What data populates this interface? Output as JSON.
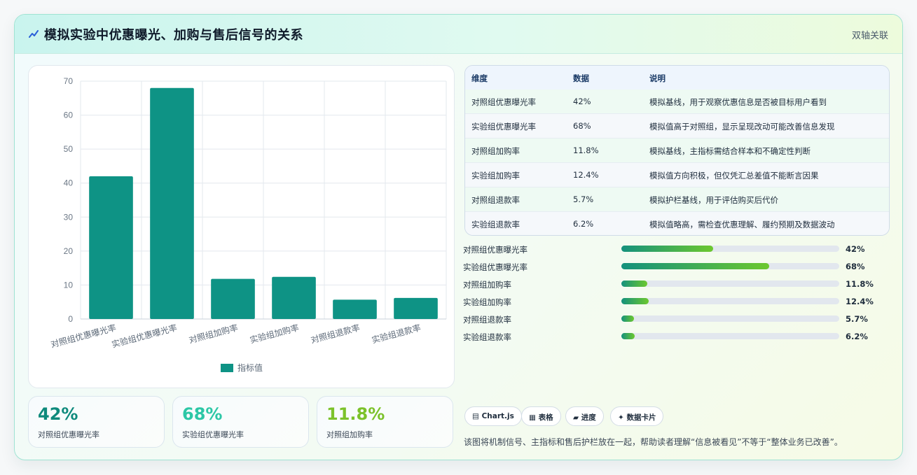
{
  "header": {
    "title": "模拟实验中优惠曝光、加购与售后信号的关系",
    "tag": "双轴关联"
  },
  "chart_data": {
    "type": "bar",
    "categories": [
      "对照组优惠曝光率",
      "实验组优惠曝光率",
      "对照组加购率",
      "实验组加购率",
      "对照组退款率",
      "实验组退款率"
    ],
    "series": [
      {
        "name": "指标值",
        "values": [
          42,
          68,
          11.8,
          12.4,
          5.7,
          6.2
        ],
        "color": "#0e9385"
      }
    ],
    "ylim": [
      0,
      70
    ],
    "yticks": [
      "0",
      "10",
      "20",
      "30",
      "40",
      "50",
      "60",
      "70"
    ],
    "grid": true,
    "legend": "bottom"
  },
  "stats": [
    {
      "value": "42%",
      "label": "对照组优惠曝光率",
      "color": "#0e8a7c"
    },
    {
      "value": "68%",
      "label": "实验组优惠曝光率",
      "color": "#2cc7a6"
    },
    {
      "value": "11.8%",
      "label": "对照组加购率",
      "color": "#7cc22a"
    }
  ],
  "table": {
    "headers": [
      "维度",
      "数据",
      "说明"
    ],
    "rows": [
      [
        "对照组优惠曝光率",
        "42%",
        "模拟基线，用于观察优惠信息是否被目标用户看到"
      ],
      [
        "实验组优惠曝光率",
        "68%",
        "模拟值高于对照组，显示呈现改动可能改善信息发现"
      ],
      [
        "对照组加购率",
        "11.8%",
        "模拟基线，主指标需结合样本和不确定性判断"
      ],
      [
        "实验组加购率",
        "12.4%",
        "模拟值方向积极，但仅凭汇总差值不能断言因果"
      ],
      [
        "对照组退款率",
        "5.7%",
        "模拟护栏基线，用于评估购买后代价"
      ],
      [
        "实验组退款率",
        "6.2%",
        "模拟值略高，需检查优惠理解、履约预期及数据波动"
      ]
    ]
  },
  "progress": [
    {
      "label": "对照组优惠曝光率",
      "value": "42%",
      "fraction": 0.42
    },
    {
      "label": "实验组优惠曝光率",
      "value": "68%",
      "fraction": 0.68
    },
    {
      "label": "对照组加购率",
      "value": "11.8%",
      "fraction": 0.118
    },
    {
      "label": "实验组加购率",
      "value": "12.4%",
      "fraction": 0.124
    },
    {
      "label": "对照组退款率",
      "value": "5.7%",
      "fraction": 0.057
    },
    {
      "label": "实验组退款率",
      "value": "6.2%",
      "fraction": 0.062
    }
  ],
  "chips": [
    {
      "icon": "chart-icon",
      "glyph": "▤",
      "label": "Chart.js"
    },
    {
      "icon": "table-icon",
      "glyph": "▦",
      "label": "表格"
    },
    {
      "icon": "progress-icon",
      "glyph": "▰",
      "label": "进度"
    },
    {
      "icon": "sparkle-icon",
      "glyph": "✦",
      "label": "数据卡片"
    }
  ],
  "note": "该图将机制信号、主指标和售后护栏放在一起，帮助读者理解“信息被看见”不等于“整体业务已改善”。"
}
